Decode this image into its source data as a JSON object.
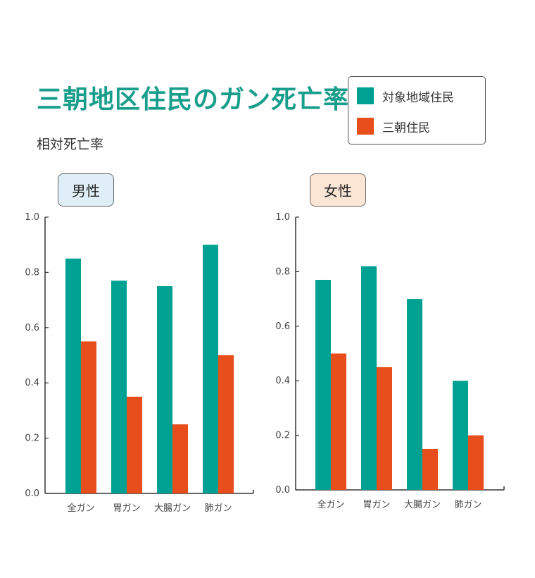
{
  "title": "三朝地区住民のガン死亡率",
  "subtitle": "相対死亡率",
  "legend": {
    "items": [
      {
        "label": "対象地域住民",
        "color": "#00a193"
      },
      {
        "label": "三朝住民",
        "color": "#e84e1b"
      }
    ],
    "placement": "top-right"
  },
  "chart_data": [
    {
      "type": "bar",
      "title": "男性",
      "categories": [
        "全ガン",
        "胃ガン",
        "大腸ガン",
        "肺ガン"
      ],
      "series": [
        {
          "name": "対象地域住民",
          "values": [
            0.85,
            0.77,
            0.75,
            0.9
          ]
        },
        {
          "name": "三朝住民",
          "values": [
            0.55,
            0.35,
            0.25,
            0.5
          ]
        }
      ],
      "ylabel": "相対死亡率",
      "ylim": [
        0,
        1.0
      ],
      "yticks": [
        "0.0",
        "0.2",
        "0.4",
        "0.6",
        "0.8",
        "1.0"
      ],
      "grid": false
    },
    {
      "type": "bar",
      "title": "女性",
      "categories": [
        "全ガン",
        "胃ガン",
        "大腸ガン",
        "肺ガン"
      ],
      "series": [
        {
          "name": "対象地域住民",
          "values": [
            0.77,
            0.82,
            0.7,
            0.4
          ]
        },
        {
          "name": "三朝住民",
          "values": [
            0.5,
            0.45,
            0.15,
            0.2
          ]
        }
      ],
      "ylabel": "相対死亡率",
      "ylim": [
        0,
        1.0
      ],
      "yticks": [
        "0.0",
        "0.2",
        "0.4",
        "0.6",
        "0.8",
        "1.0"
      ],
      "grid": false
    }
  ]
}
